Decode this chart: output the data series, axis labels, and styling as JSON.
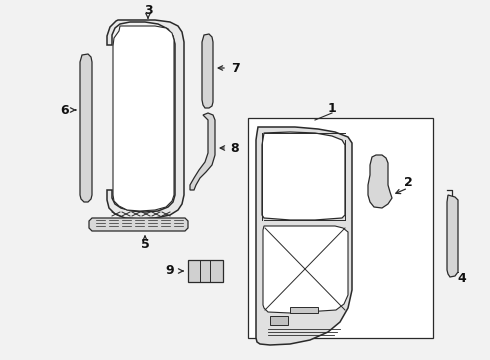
{
  "bg_color": "#f2f2f2",
  "line_color": "#2a2a2a",
  "label_color": "#111111",
  "figsize": [
    4.9,
    3.6
  ],
  "dpi": 100
}
